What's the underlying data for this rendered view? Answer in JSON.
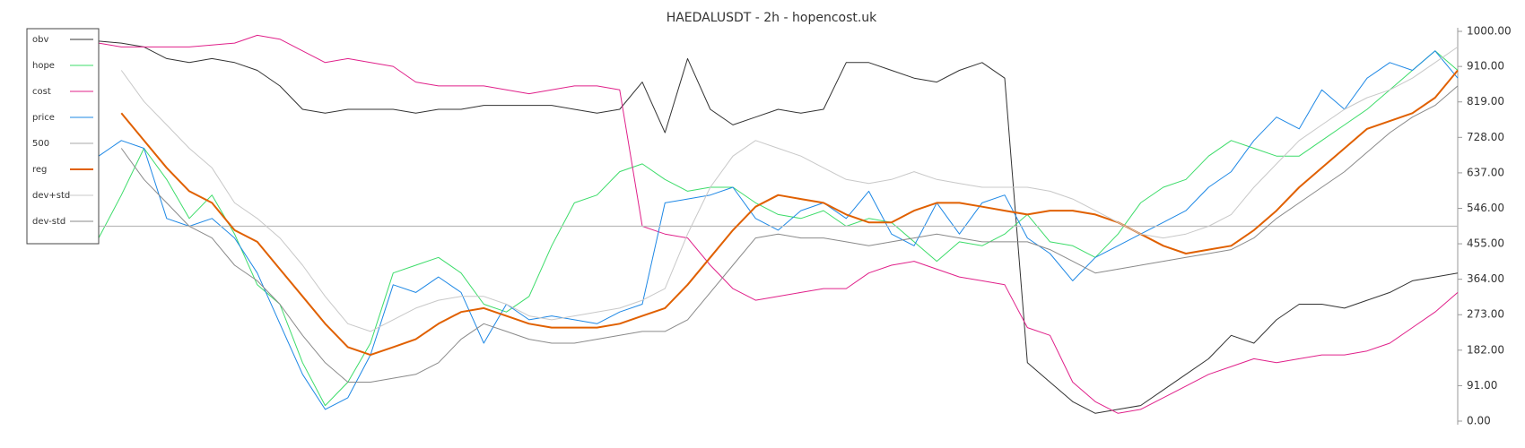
{
  "chart_data": {
    "type": "line",
    "title": "HAEDALUSDT - 2h - hopencost.uk",
    "categories": [
      null,
      null,
      null,
      null,
      null,
      null,
      null,
      null,
      null,
      null,
      null,
      null,
      null,
      null,
      null,
      null,
      null,
      null,
      null,
      null,
      null,
      null,
      null,
      null,
      null,
      null,
      null,
      null,
      null,
      null,
      null,
      null,
      null,
      null,
      null,
      null,
      null,
      null,
      null,
      null,
      null,
      null,
      null,
      null,
      null,
      null,
      null,
      null,
      null,
      null,
      null,
      null,
      null,
      null,
      null,
      null,
      null,
      null,
      null,
      null,
      null
    ],
    "series": [
      {
        "name": "obv",
        "color": "#333333",
        "line_width": 1,
        "values": [
          975,
          970,
          960,
          930,
          920,
          930,
          920,
          900,
          860,
          800,
          790,
          800,
          800,
          800,
          790,
          800,
          800,
          810,
          810,
          810,
          810,
          800,
          790,
          800,
          870,
          740,
          930,
          800,
          760,
          780,
          800,
          790,
          800,
          920,
          920,
          900,
          880,
          870,
          900,
          920,
          880,
          150,
          100,
          50,
          20,
          30,
          40,
          80,
          120,
          160,
          220,
          200,
          260,
          300,
          300,
          290,
          310,
          330,
          360,
          370,
          380
        ]
      },
      {
        "name": "hope",
        "color": "#3ddc6a",
        "line_width": 1,
        "values": [
          470,
          580,
          700,
          620,
          520,
          580,
          480,
          350,
          300,
          150,
          40,
          100,
          200,
          380,
          400,
          420,
          380,
          300,
          280,
          320,
          450,
          560,
          580,
          640,
          660,
          620,
          590,
          600,
          600,
          560,
          530,
          520,
          540,
          500,
          520,
          510,
          460,
          410,
          460,
          450,
          480,
          530,
          460,
          450,
          420,
          480,
          560,
          600,
          620,
          680,
          720,
          700,
          680,
          680,
          720,
          760,
          800,
          850,
          900,
          950,
          900
        ]
      },
      {
        "name": "cost",
        "color": "#e0218a",
        "line_width": 1,
        "values": [
          970,
          960,
          960,
          960,
          960,
          965,
          970,
          990,
          980,
          950,
          920,
          930,
          920,
          910,
          870,
          860,
          860,
          860,
          850,
          840,
          850,
          860,
          860,
          850,
          500,
          480,
          470,
          400,
          340,
          310,
          320,
          330,
          340,
          340,
          380,
          400,
          410,
          390,
          370,
          360,
          350,
          240,
          220,
          100,
          50,
          20,
          30,
          60,
          90,
          120,
          140,
          160,
          150,
          160,
          170,
          170,
          180,
          200,
          240,
          280,
          330
        ]
      },
      {
        "name": "price",
        "color": "#1e88e5",
        "line_width": 1,
        "values": [
          680,
          720,
          700,
          520,
          500,
          520,
          470,
          380,
          250,
          120,
          30,
          60,
          170,
          350,
          330,
          370,
          330,
          200,
          300,
          260,
          270,
          260,
          250,
          280,
          300,
          560,
          570,
          580,
          600,
          520,
          490,
          540,
          560,
          520,
          590,
          480,
          450,
          560,
          480,
          560,
          580,
          470,
          430,
          360,
          420,
          450,
          480,
          510,
          540,
          600,
          640,
          720,
          780,
          750,
          850,
          800,
          880,
          920,
          900,
          950,
          880
        ]
      },
      {
        "name": "500",
        "color": "#bbbbbb",
        "line_width": 1.2,
        "values": [
          500,
          500,
          500,
          500,
          500,
          500,
          500,
          500,
          500,
          500,
          500,
          500,
          500,
          500,
          500,
          500,
          500,
          500,
          500,
          500,
          500,
          500,
          500,
          500,
          500,
          500,
          500,
          500,
          500,
          500,
          500,
          500,
          500,
          500,
          500,
          500,
          500,
          500,
          500,
          500,
          500,
          500,
          500,
          500,
          500,
          500,
          500,
          500,
          500,
          500,
          500,
          500,
          500,
          500,
          500,
          500,
          500,
          500,
          500,
          500,
          500
        ]
      },
      {
        "name": "reg",
        "color": "#e06000",
        "line_width": 2,
        "values": [
          null,
          790,
          720,
          650,
          590,
          560,
          490,
          460,
          390,
          320,
          250,
          190,
          170,
          190,
          210,
          250,
          280,
          290,
          270,
          250,
          240,
          240,
          240,
          250,
          270,
          290,
          350,
          420,
          490,
          550,
          580,
          570,
          560,
          530,
          510,
          510,
          540,
          560,
          560,
          550,
          540,
          530,
          540,
          540,
          530,
          510,
          480,
          450,
          430,
          440,
          450,
          490,
          540,
          600,
          650,
          700,
          750,
          770,
          790,
          830,
          900
        ]
      },
      {
        "name": "dev+std",
        "color": "#c8c8c8",
        "line_width": 1,
        "values": [
          null,
          900,
          820,
          760,
          700,
          650,
          560,
          520,
          470,
          400,
          320,
          250,
          230,
          260,
          290,
          310,
          320,
          320,
          300,
          270,
          260,
          270,
          280,
          290,
          310,
          340,
          480,
          600,
          680,
          720,
          700,
          680,
          650,
          620,
          610,
          620,
          640,
          620,
          610,
          600,
          600,
          600,
          590,
          570,
          540,
          510,
          480,
          470,
          480,
          500,
          530,
          600,
          660,
          720,
          760,
          800,
          830,
          850,
          880,
          920,
          960
        ]
      },
      {
        "name": "dev-std",
        "color": "#8a8a8a",
        "line_width": 1,
        "values": [
          null,
          700,
          620,
          560,
          500,
          470,
          400,
          360,
          300,
          220,
          150,
          100,
          100,
          110,
          120,
          150,
          210,
          250,
          230,
          210,
          200,
          200,
          210,
          220,
          230,
          230,
          260,
          330,
          400,
          470,
          480,
          470,
          470,
          460,
          450,
          460,
          470,
          480,
          470,
          460,
          460,
          460,
          440,
          410,
          380,
          390,
          400,
          410,
          420,
          430,
          440,
          470,
          520,
          560,
          600,
          640,
          690,
          740,
          780,
          810,
          860
        ]
      }
    ],
    "ylim": [
      0,
      1000
    ],
    "yticks": [
      {
        "value": 0,
        "label": "0.00"
      },
      {
        "value": 91,
        "label": "91.00"
      },
      {
        "value": 182,
        "label": "182.00"
      },
      {
        "value": 273,
        "label": "273.00"
      },
      {
        "value": 364,
        "label": "364.00"
      },
      {
        "value": 455,
        "label": "455.00"
      },
      {
        "value": 546,
        "label": "546.00"
      },
      {
        "value": 637,
        "label": "637.00"
      },
      {
        "value": 728,
        "label": "728.00"
      },
      {
        "value": 819,
        "label": "819.00"
      },
      {
        "value": 910,
        "label": "910.00"
      },
      {
        "value": 1000,
        "label": "1000.00"
      }
    ],
    "y_axis_side": "right",
    "grid": false,
    "legend": "upper left"
  }
}
